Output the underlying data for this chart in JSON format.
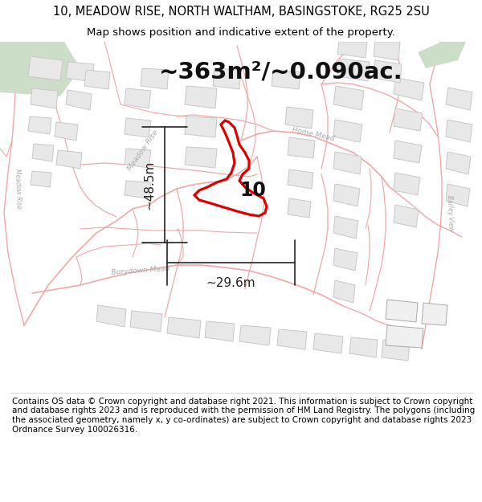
{
  "title_line1": "10, MEADOW RISE, NORTH WALTHAM, BASINGSTOKE, RG25 2SU",
  "title_line2": "Map shows position and indicative extent of the property.",
  "area_text": "~363m²/~0.090ac.",
  "width_label": "~29.6m",
  "height_label": "~48.5m",
  "property_number": "10",
  "footer_text": "Contains OS data © Crown copyright and database right 2021. This information is subject to Crown copyright and database rights 2023 and is reproduced with the permission of HM Land Registry. The polygons (including the associated geometry, namely x, y co-ordinates) are subject to Crown copyright and database rights 2023 Ordnance Survey 100026316.",
  "map_bg": "#f7f7f7",
  "road_color": "#f0a8a8",
  "building_fill": "#e8e8e8",
  "building_edge": "#c8c8c8",
  "highlight_color": "#dd0000",
  "green_color": "#cddec8",
  "dim_color": "#222222",
  "street_label_color": "#aaaaaa",
  "title_fontsize": 10.5,
  "subtitle_fontsize": 9.5,
  "area_fontsize": 21,
  "footer_fontsize": 7.5,
  "dim_label_fontsize": 11,
  "property_num_fontsize": 17
}
